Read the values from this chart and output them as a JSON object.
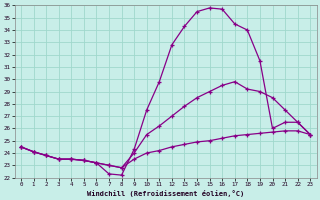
{
  "xlabel": "Windchill (Refroidissement éolien,°C)",
  "background_color": "#c8eee8",
  "grid_color": "#a0d8cc",
  "line_color": "#880088",
  "xlim": [
    -0.5,
    23.5
  ],
  "ylim": [
    22,
    36
  ],
  "x_ticks": [
    0,
    1,
    2,
    3,
    4,
    5,
    6,
    7,
    8,
    9,
    10,
    11,
    12,
    13,
    14,
    15,
    16,
    17,
    18,
    19,
    20,
    21,
    22,
    23
  ],
  "y_ticks": [
    22,
    23,
    24,
    25,
    26,
    27,
    28,
    29,
    30,
    31,
    32,
    33,
    34,
    35,
    36
  ],
  "line1_x": [
    0,
    1,
    2,
    3,
    4,
    5,
    6,
    7,
    8,
    9,
    10,
    11,
    12,
    13,
    14,
    15,
    16,
    17,
    18,
    19,
    20,
    21,
    22,
    23
  ],
  "line1_y": [
    24.5,
    24.1,
    23.8,
    23.5,
    23.5,
    23.4,
    23.2,
    22.3,
    22.2,
    24.3,
    27.5,
    29.8,
    32.8,
    34.3,
    35.5,
    35.8,
    35.7,
    34.5,
    34.0,
    31.5,
    26.0,
    26.5,
    26.5,
    25.5
  ],
  "line2_x": [
    0,
    1,
    2,
    3,
    4,
    5,
    6,
    7,
    8,
    9,
    10,
    11,
    12,
    13,
    14,
    15,
    16,
    17,
    18,
    19,
    20,
    21,
    22,
    23
  ],
  "line2_y": [
    24.5,
    24.1,
    23.8,
    23.5,
    23.5,
    23.4,
    23.2,
    23.0,
    22.8,
    24.0,
    25.5,
    26.2,
    27.0,
    27.8,
    28.5,
    29.0,
    29.5,
    29.8,
    29.2,
    29.0,
    28.5,
    27.5,
    26.5,
    25.5
  ],
  "line3_x": [
    0,
    1,
    2,
    3,
    4,
    5,
    6,
    7,
    8,
    9,
    10,
    11,
    12,
    13,
    14,
    15,
    16,
    17,
    18,
    19,
    20,
    21,
    22,
    23
  ],
  "line3_y": [
    24.5,
    24.1,
    23.8,
    23.5,
    23.5,
    23.4,
    23.2,
    23.0,
    22.8,
    23.5,
    24.0,
    24.2,
    24.5,
    24.7,
    24.9,
    25.0,
    25.2,
    25.4,
    25.5,
    25.6,
    25.7,
    25.8,
    25.8,
    25.5
  ]
}
